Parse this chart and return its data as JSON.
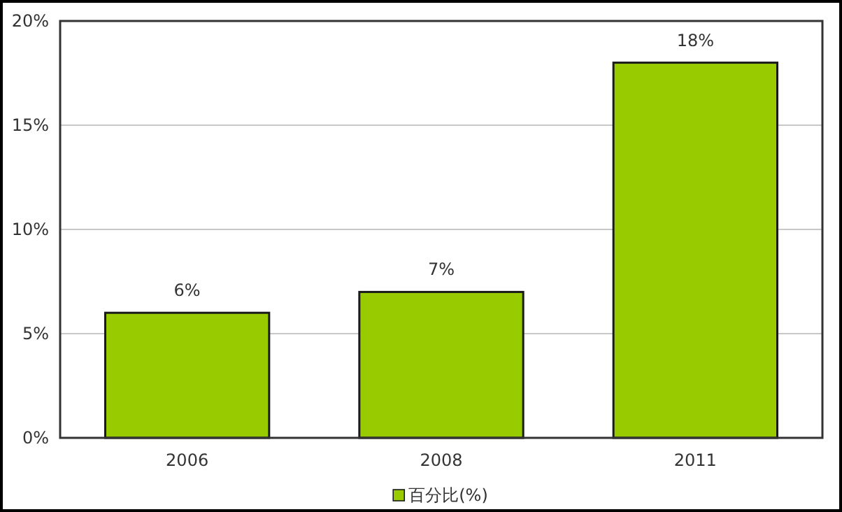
{
  "chart_data": {
    "type": "bar",
    "categories": [
      "2006",
      "2008",
      "2011"
    ],
    "series": [
      {
        "name": "百分比(%)",
        "color": "#99cc00",
        "values": [
          6,
          7,
          18
        ],
        "value_labels": [
          "6%",
          "7%",
          "18%"
        ]
      }
    ],
    "ylim": [
      0,
      20
    ],
    "yticks": [
      {
        "value": 0,
        "label": "0%"
      },
      {
        "value": 5,
        "label": "5%"
      },
      {
        "value": 10,
        "label": "10%"
      },
      {
        "value": 15,
        "label": "15%"
      },
      {
        "value": 20,
        "label": "20%"
      }
    ],
    "grid": "y",
    "legend": "bottom"
  }
}
